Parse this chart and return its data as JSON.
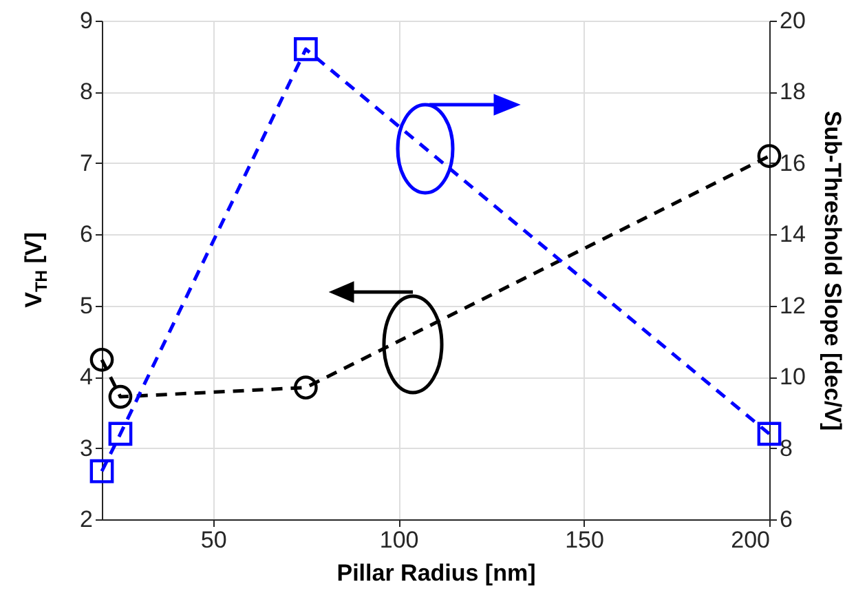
{
  "chart_data": {
    "type": "line",
    "xlabel": "Pillar Radius [nm]",
    "ylabel": "V$_{TH}$ [V]",
    "y2label": "Sub-Threshold Slope [dec/V]",
    "x": [
      20,
      25,
      75,
      200
    ],
    "xlim": [
      20,
      200
    ],
    "xticks": [
      50,
      100,
      150,
      200
    ],
    "ylim": [
      2,
      9
    ],
    "yticks": [
      2,
      3,
      4,
      5,
      6,
      7,
      8,
      9
    ],
    "y2lim": [
      6,
      20
    ],
    "y2ticks": [
      6,
      8,
      10,
      12,
      14,
      16,
      18,
      20
    ],
    "grid": true,
    "line_style": "dashed",
    "series": [
      {
        "color": "#000000",
        "marker": "circle",
        "values": [
          4.24,
          3.72,
          3.85,
          7.1
        ]
      },
      {
        "color": "#0000ff",
        "marker": "square",
        "axis": "y2",
        "values": [
          7.35,
          8.4,
          19.2,
          8.4
        ]
      }
    ]
  }
}
